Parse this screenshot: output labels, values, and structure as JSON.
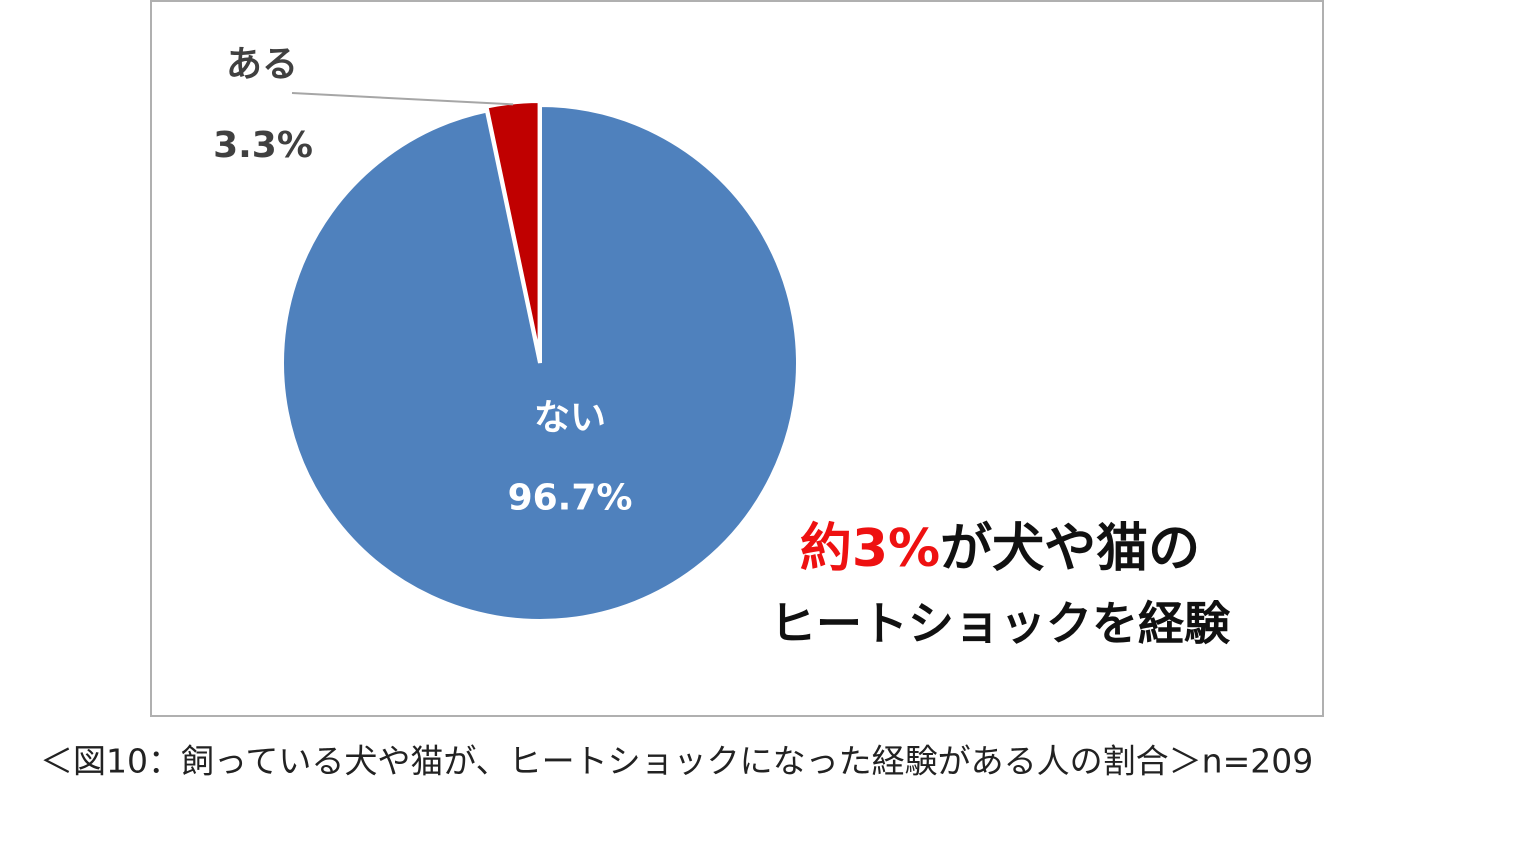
{
  "chart_data": {
    "type": "pie",
    "categories": [
      "ない",
      "ある"
    ],
    "values": [
      96.7,
      3.3
    ],
    "value_labels": [
      "96.7%",
      "3.3%"
    ],
    "colors": [
      "#4f81bd",
      "#c00000"
    ],
    "annotation": {
      "highlight": "約3%",
      "highlight_color": "#ee1111",
      "text": "が犬や猫の",
      "line2": "ヒートショックを経験"
    },
    "caption": "＜図10：飼っている犬や猫が、ヒートショックになった経験がある人の割合＞n=209"
  }
}
